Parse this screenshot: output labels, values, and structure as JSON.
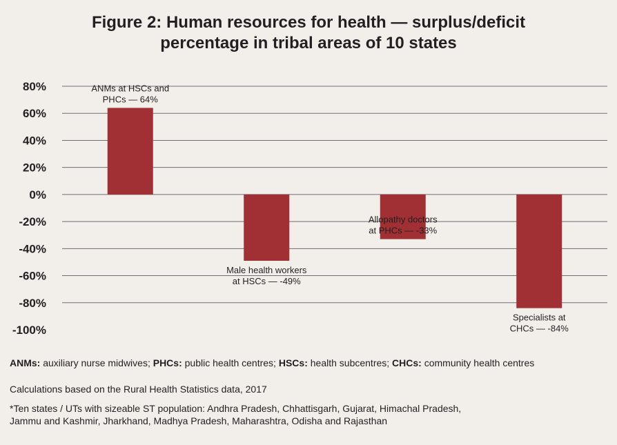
{
  "chart_data": {
    "type": "bar",
    "title": [
      "Figure 2: Human resources for health — surplus/deficit",
      "percentage in tribal areas of 10 states"
    ],
    "categories": [
      "ANMs at HSCs and PHCs",
      "Male health workers at HSCs",
      "Allopathy doctors at PHCs",
      "Specialists at CHCs"
    ],
    "values": [
      64,
      -49,
      -33,
      -84
    ],
    "data_labels": [
      [
        "ANMs at HSCs and",
        "PHCs — 64%"
      ],
      [
        "Male health workers",
        "at HSCs — -49%"
      ],
      [
        "Allopathy doctors",
        "at PHCs — -33%"
      ],
      [
        "Specialists at",
        "CHCs — -84%"
      ]
    ],
    "label_position": [
      "above",
      "below",
      "above",
      "below"
    ],
    "yticks": [
      80,
      60,
      40,
      20,
      0,
      -20,
      -40,
      -60,
      -80,
      -100
    ],
    "ytick_labels": [
      "80%",
      "60%",
      "40%",
      "20%",
      "0%",
      "-20%",
      "-40%",
      "-60%",
      "-80%",
      "-100%"
    ],
    "ylim": [
      -100,
      80
    ],
    "xlabel": "",
    "ylabel": "",
    "grid": true,
    "bar_color": "#a03033",
    "grid_color": "#6d6e71"
  },
  "notes": {
    "abbreviations": [
      {
        "abbr": "ANMs:",
        "def": "auxiliary nurse midwives;"
      },
      {
        "abbr": "PHCs:",
        "def": "public health centres;"
      },
      {
        "abbr": "HSCs:",
        "def": "health subcentres;"
      },
      {
        "abbr": "CHCs:",
        "def": "community health centres"
      }
    ],
    "calculation": "Calculations based on the Rural Health Statistics data, 2017",
    "states_line1": "*Ten states / UTs with sizeable ST population: Andhra Pradesh, Chhattisgarh, Gujarat, Himachal Pradesh,",
    "states_line2": "Jammu and Kashmir, Jharkhand, Madhya Pradesh, Maharashtra, Odisha and Rajasthan"
  }
}
